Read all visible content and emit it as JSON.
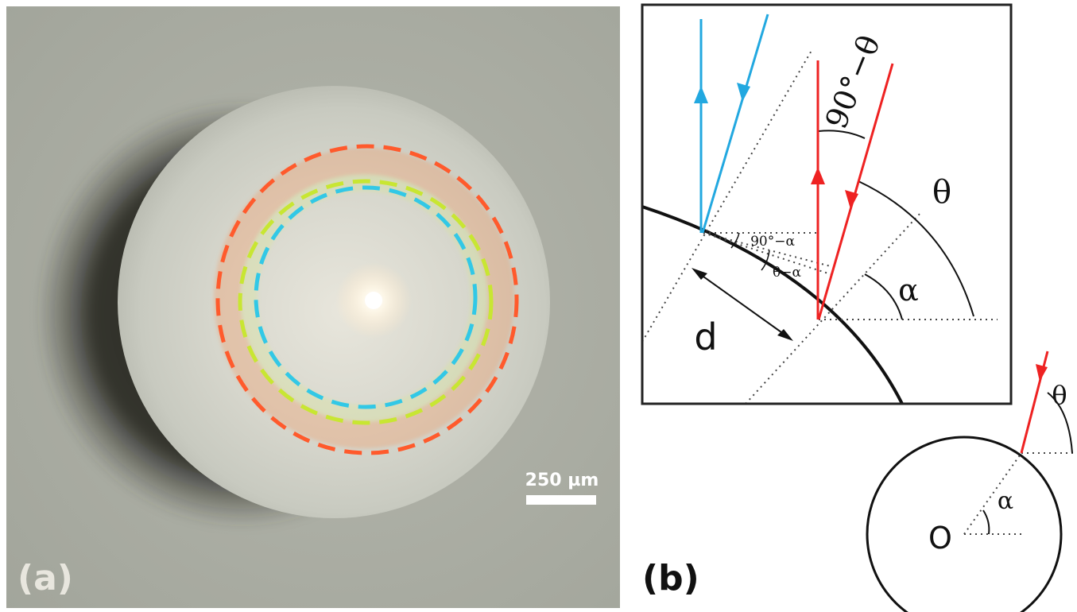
{
  "panel_a": {
    "label": "(a)",
    "scale_bar_label": "250 µm",
    "ring_colors": {
      "outer": "#ff5a2c",
      "middle": "#c8e632",
      "inner": "#32c8e6"
    }
  },
  "panel_b": {
    "label": "(b)",
    "inset": {
      "angle_top": "90°−θ",
      "theta": "θ",
      "alpha": "α",
      "angle_90_minus_alpha": "90°−α",
      "theta_minus_alpha": "θ−α",
      "distance": "d"
    },
    "sphere": {
      "theta": "θ",
      "alpha": "α",
      "center": "O"
    },
    "colors": {
      "incident_red": "#ee2222",
      "incident_blue": "#22a8e0"
    }
  }
}
